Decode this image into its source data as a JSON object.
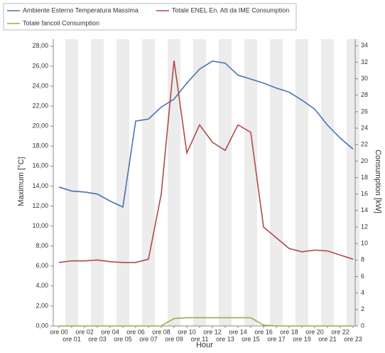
{
  "chart_data": {
    "type": "line",
    "x_label": "Hour",
    "y_label": "Maximum [°C]",
    "y2_label": "Consumption [kW]",
    "categories": [
      "ore 00",
      "ore 01",
      "ore 02",
      "ore 03",
      "ore 04",
      "ore 05",
      "ore 06",
      "ore 07",
      "ore 08",
      "ore 09",
      "ore 10",
      "ore 11",
      "ore 12",
      "ore 13",
      "ore 14",
      "ore 15",
      "ore 16",
      "ore 17",
      "ore 18",
      "ore 19",
      "ore 20",
      "ore 21",
      "ore 22",
      "ore 23"
    ],
    "series": [
      {
        "name": "Ambiente Esterno  Temperatura Massima",
        "color": "#4a72b0",
        "axis": "y",
        "values": [
          13.9,
          13.5,
          13.4,
          13.2,
          12.5,
          11.9,
          20.5,
          20.7,
          21.9,
          22.7,
          24.3,
          25.7,
          26.5,
          26.3,
          25.1,
          24.7,
          24.3,
          23.8,
          23.4,
          22.6,
          21.7,
          20.1,
          18.8,
          17.7
        ]
      },
      {
        "name": "Totale ENEL En. Att da IME Consumption",
        "color": "#b04a48",
        "axis": "y2",
        "values": [
          7.7,
          7.9,
          7.9,
          8.0,
          7.8,
          7.7,
          7.7,
          8.1,
          16.0,
          32.2,
          21.0,
          24.4,
          22.3,
          21.3,
          24.4,
          23.5,
          12.0,
          10.7,
          9.4,
          9.0,
          9.2,
          9.1,
          8.6,
          8.1
        ]
      },
      {
        "name": "Totale fancoil Consumption",
        "color": "#8fb04a",
        "axis": "y2",
        "values": [
          0,
          0,
          0,
          0,
          0,
          0,
          0,
          0,
          0,
          0.9,
          1.0,
          1.0,
          1.0,
          1.0,
          1.0,
          1.0,
          0.1,
          0,
          0,
          0,
          0,
          0,
          0,
          0
        ]
      }
    ],
    "ylim": [
      0,
      28.7
    ],
    "yticks": [
      {
        "value": 0,
        "label": "0,00"
      },
      {
        "value": 2,
        "label": "2,00"
      },
      {
        "value": 4,
        "label": "4,00"
      },
      {
        "value": 6,
        "label": "6,00"
      },
      {
        "value": 8,
        "label": "8,00"
      },
      {
        "value": 10,
        "label": "10,00"
      },
      {
        "value": 12,
        "label": "12,00"
      },
      {
        "value": 14,
        "label": "14,00"
      },
      {
        "value": 16,
        "label": "16,00"
      },
      {
        "value": 18,
        "label": "18,00"
      },
      {
        "value": 20,
        "label": "20,00"
      },
      {
        "value": 22,
        "label": "22,00"
      },
      {
        "value": 24,
        "label": "24,00"
      },
      {
        "value": 26,
        "label": "26,00"
      },
      {
        "value": 28,
        "label": "28,00"
      }
    ],
    "y2lim": [
      0,
      34.8
    ],
    "y2ticks": [
      0,
      2,
      4,
      6,
      8,
      10,
      12,
      14,
      16,
      18,
      20,
      22,
      24,
      26,
      28,
      30,
      32,
      34
    ]
  }
}
